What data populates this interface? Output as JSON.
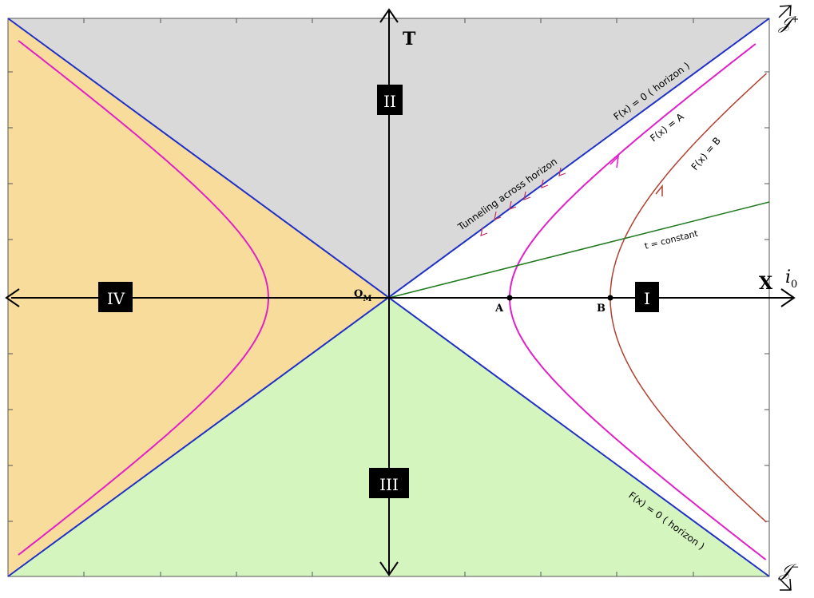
{
  "axes": {
    "t_label": "T",
    "x_label": "X",
    "origin_label": "O",
    "origin_subscript": "M"
  },
  "regions": [
    {
      "id": "region-II",
      "label": "II",
      "color": "#d9d9d9"
    },
    {
      "id": "region-IV",
      "label": "IV",
      "color": "#f7dc9c"
    },
    {
      "id": "region-III",
      "label": "III",
      "color": "#d5f5bf"
    },
    {
      "id": "region-I",
      "label": "I",
      "color": "#ffffff"
    }
  ],
  "points": [
    {
      "id": "point-A",
      "label": "A"
    },
    {
      "id": "point-B",
      "label": "B"
    }
  ],
  "annotations": {
    "horizon_upper": "F(x) = 0  ( horizon )",
    "horizon_lower": "F(x) = 0  ( horizon )",
    "curve_A": "F(x) = A",
    "curve_B": "F(x) = B",
    "t_constant": "t = constant",
    "tunneling": "Tunneling across horizon"
  },
  "infinity": {
    "scri_plus": "𝒥",
    "scri_plus_sup": "+",
    "scri_minus": "𝒥",
    "scri_minus_sup": "−",
    "i0": "i",
    "i0_sub": "0"
  },
  "colors": {
    "horizon": "#1f2fc8",
    "curve_A": "#e020c8",
    "curve_B": "#b04030",
    "t_constant": "#1f7a1f",
    "axes": "#000000",
    "tunnel_arrow": "#c03060"
  }
}
